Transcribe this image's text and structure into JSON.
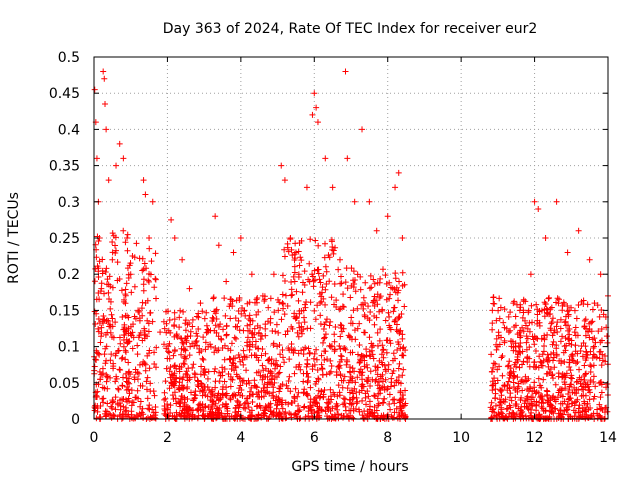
{
  "chart_data": {
    "type": "scatter",
    "title": "Day 363 of 2024, Rate Of TEC Index for receiver eur2",
    "xlabel": "GPS time / hours",
    "ylabel": "ROTI / TECUs",
    "xlim": [
      0,
      14
    ],
    "ylim": [
      0,
      0.5
    ],
    "xticks": [
      0,
      2,
      4,
      6,
      8,
      10,
      12,
      14
    ],
    "xtick_labels": [
      "0",
      "2",
      "4",
      "6",
      "8",
      "10",
      "12",
      "14"
    ],
    "yticks": [
      0,
      0.05,
      0.1,
      0.15,
      0.2,
      0.25,
      0.3,
      0.35,
      0.4,
      0.45,
      0.5
    ],
    "ytick_labels": [
      "0",
      "0.05",
      "0.1",
      "0.15",
      "0.2",
      "0.25",
      "0.3",
      "0.35",
      "0.4",
      "0.45",
      "0.5"
    ],
    "grid": true,
    "marker": "+",
    "marker_color": "#ff0000",
    "series": [
      {
        "name": "ROTI",
        "points": [
          [
            0.02,
            0.455
          ],
          [
            0.05,
            0.41
          ],
          [
            0.08,
            0.36
          ],
          [
            0.12,
            0.3
          ],
          [
            0.15,
            0.25
          ],
          [
            0.2,
            0.18
          ],
          [
            0.25,
            0.48
          ],
          [
            0.28,
            0.47
          ],
          [
            0.3,
            0.435
          ],
          [
            0.33,
            0.4
          ],
          [
            0.4,
            0.33
          ],
          [
            0.5,
            0.22
          ],
          [
            0.6,
            0.35
          ],
          [
            0.7,
            0.38
          ],
          [
            0.8,
            0.36
          ],
          [
            0.9,
            0.25
          ],
          [
            1.0,
            0.2
          ],
          [
            1.2,
            0.15
          ],
          [
            1.35,
            0.33
          ],
          [
            1.4,
            0.31
          ],
          [
            1.5,
            0.25
          ],
          [
            1.6,
            0.3
          ],
          [
            1.8,
            0.12
          ],
          [
            2.1,
            0.275
          ],
          [
            2.2,
            0.25
          ],
          [
            2.4,
            0.22
          ],
          [
            2.6,
            0.18
          ],
          [
            2.9,
            0.16
          ],
          [
            3.1,
            0.12
          ],
          [
            3.3,
            0.28
          ],
          [
            3.4,
            0.24
          ],
          [
            3.6,
            0.19
          ],
          [
            3.8,
            0.23
          ],
          [
            4.0,
            0.25
          ],
          [
            4.3,
            0.2
          ],
          [
            4.6,
            0.17
          ],
          [
            4.9,
            0.2
          ],
          [
            5.1,
            0.35
          ],
          [
            5.2,
            0.33
          ],
          [
            5.35,
            0.25
          ],
          [
            5.5,
            0.23
          ],
          [
            5.8,
            0.32
          ],
          [
            5.95,
            0.42
          ],
          [
            6.0,
            0.45
          ],
          [
            6.05,
            0.43
          ],
          [
            6.1,
            0.41
          ],
          [
            6.3,
            0.36
          ],
          [
            6.5,
            0.32
          ],
          [
            6.7,
            0.22
          ],
          [
            6.85,
            0.48
          ],
          [
            6.9,
            0.36
          ],
          [
            7.1,
            0.3
          ],
          [
            7.3,
            0.4
          ],
          [
            7.5,
            0.3
          ],
          [
            7.7,
            0.26
          ],
          [
            8.0,
            0.28
          ],
          [
            8.2,
            0.32
          ],
          [
            8.3,
            0.34
          ],
          [
            8.4,
            0.25
          ],
          [
            10.85,
            0.15
          ],
          [
            11.0,
            0.1
          ],
          [
            11.3,
            0.12
          ],
          [
            11.6,
            0.15
          ],
          [
            11.9,
            0.2
          ],
          [
            12.0,
            0.3
          ],
          [
            12.1,
            0.29
          ],
          [
            12.3,
            0.25
          ],
          [
            12.6,
            0.3
          ],
          [
            12.9,
            0.23
          ],
          [
            13.2,
            0.26
          ],
          [
            13.5,
            0.22
          ],
          [
            13.8,
            0.2
          ],
          [
            14.0,
            0.17
          ]
        ],
        "dense_bands": [
          {
            "x_range": [
              0.0,
              1.7
            ],
            "y_range": [
              0.0,
              0.26
            ]
          },
          {
            "x_range": [
              1.9,
              3.15
            ],
            "y_range": [
              0.0,
              0.15
            ]
          },
          {
            "x_range": [
              3.15,
              5.1
            ],
            "y_range": [
              0.0,
              0.17
            ]
          },
          {
            "x_range": [
              5.1,
              6.6
            ],
            "y_range": [
              0.0,
              0.25
            ]
          },
          {
            "x_range": [
              6.6,
              8.5
            ],
            "y_range": [
              0.0,
              0.21
            ]
          },
          {
            "x_range": [
              10.8,
              14.0
            ],
            "y_range": [
              0.0,
              0.17
            ]
          }
        ],
        "data_gap": [
          8.5,
          10.8
        ]
      }
    ]
  }
}
